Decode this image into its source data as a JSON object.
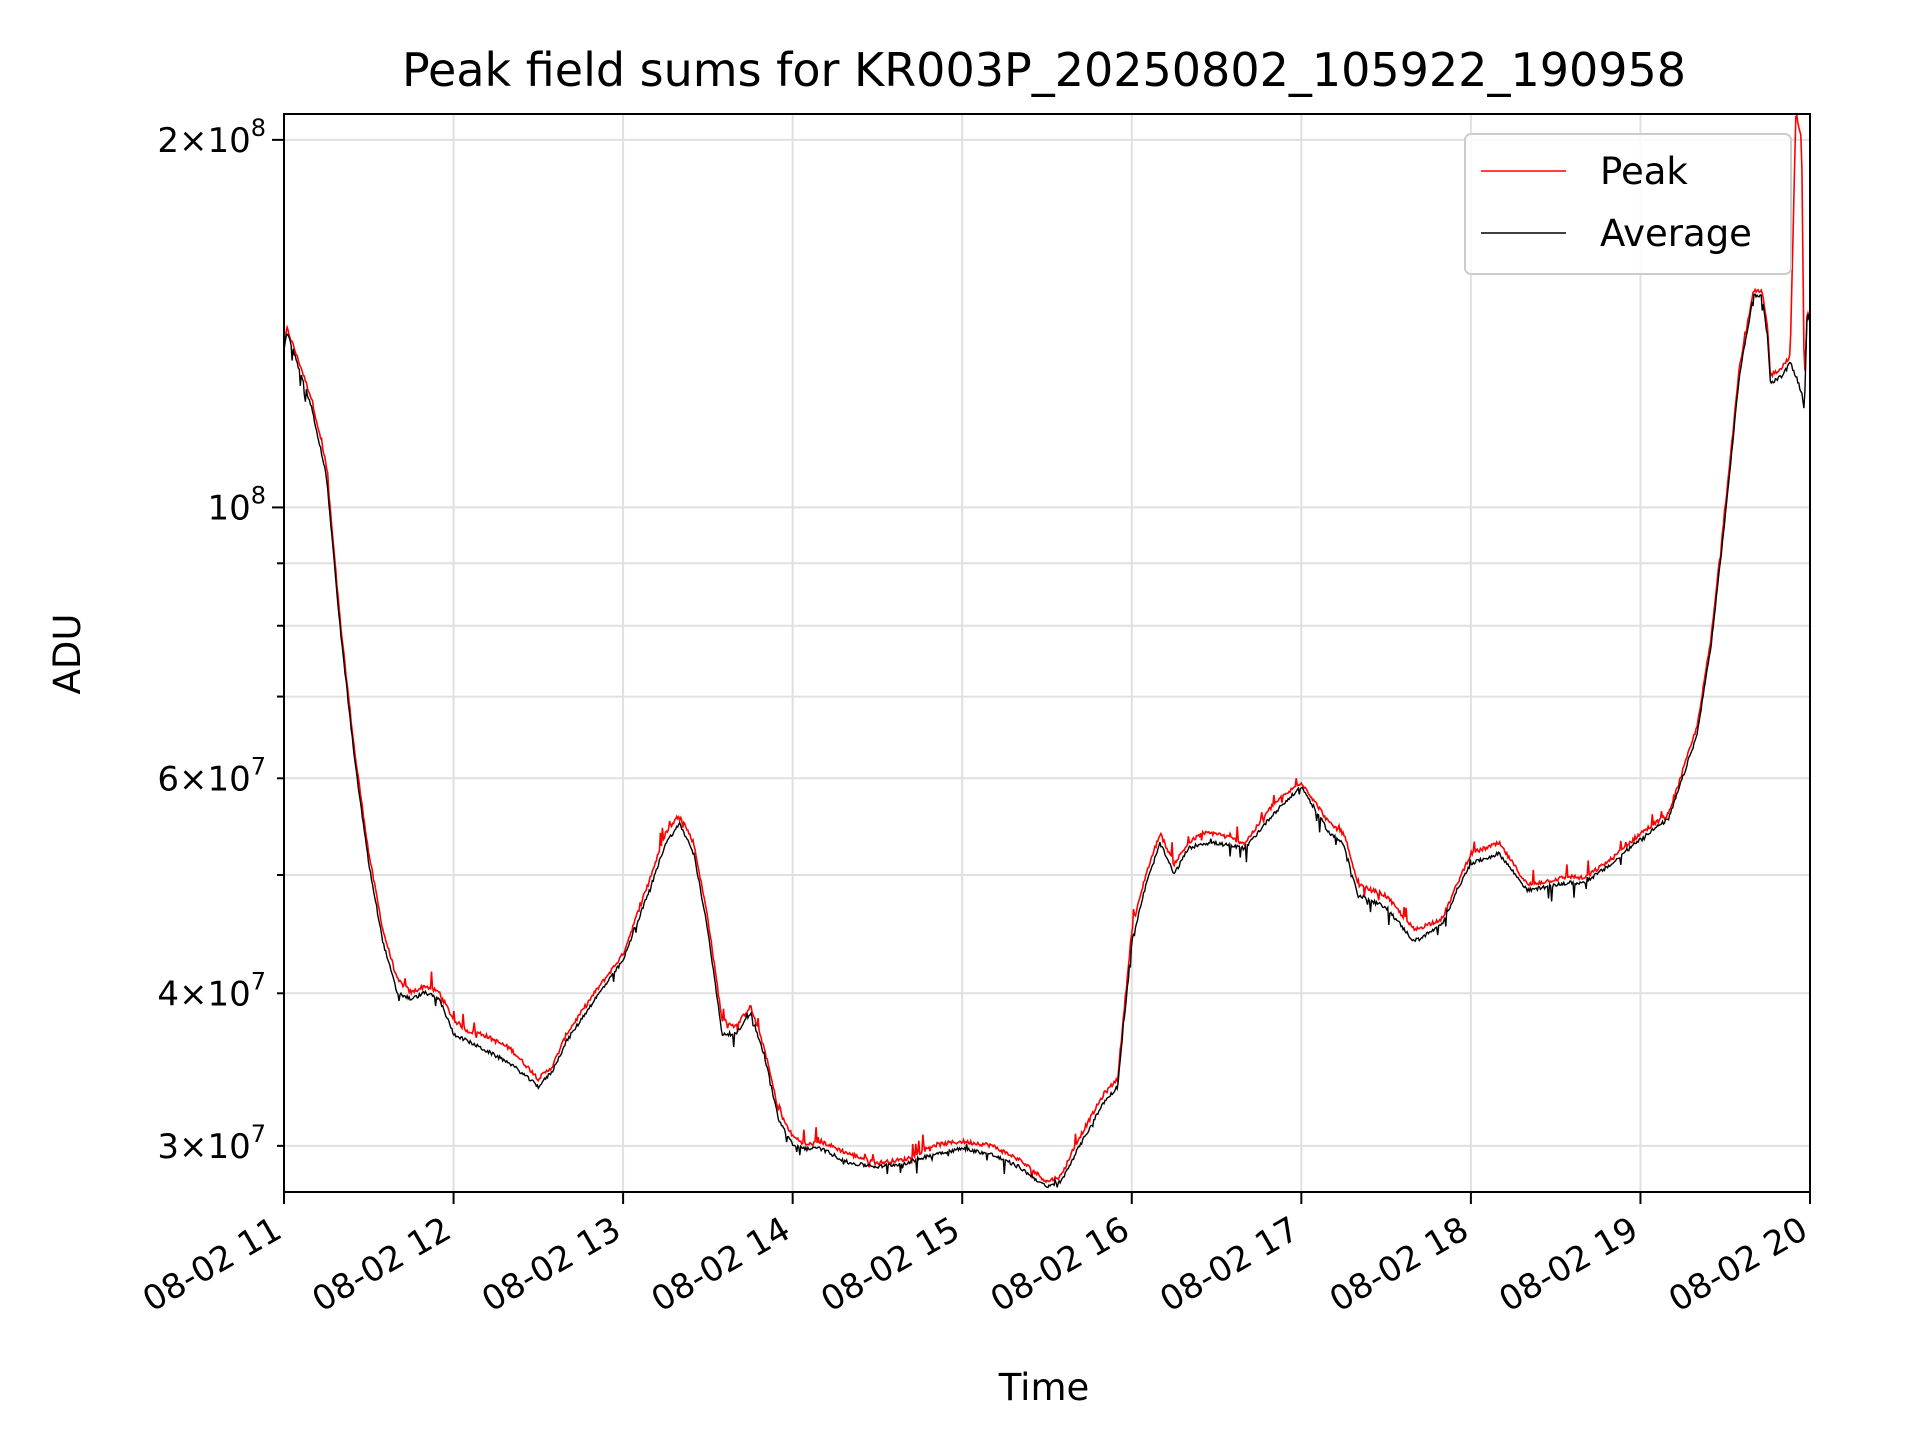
{
  "chart_data": {
    "type": "line",
    "title": "Peak field sums for KR003P_20250802_105922_190958",
    "xlabel": "Time",
    "ylabel": "ADU",
    "xlim": [
      "2025-08-02T11:00",
      "2025-08-02T20:00"
    ],
    "ylim": [
      27500000,
      210000000
    ],
    "yscale": "log",
    "grid": true,
    "legend": {
      "position": "top-right",
      "entries": [
        "Peak",
        "Average"
      ]
    },
    "x_ticks": [
      "08-02 11",
      "08-02 12",
      "08-02 13",
      "08-02 14",
      "08-02 15",
      "08-02 16",
      "08-02 17",
      "08-02 18",
      "08-02 19",
      "08-02 20"
    ],
    "y_ticks_major": [
      {
        "value": 100000000,
        "mantissa": "",
        "base": "10",
        "exp": "8"
      },
      {
        "value": 200000000,
        "mantissa": "2",
        "base": "10",
        "exp": "8"
      }
    ],
    "y_ticks_minor": [
      {
        "value": 30000000,
        "mantissa": "3",
        "base": "10",
        "exp": "7"
      },
      {
        "value": 40000000,
        "mantissa": "4",
        "base": "10",
        "exp": "7"
      },
      {
        "value": 60000000,
        "mantissa": "6",
        "base": "10",
        "exp": "7"
      }
    ],
    "y_minor_unlabeled": [
      50000000,
      70000000,
      80000000,
      90000000
    ],
    "series": [
      {
        "name": "Peak",
        "color": "#ff0000",
        "x": [
          "11:00",
          "11:01",
          "11:03",
          "11:06",
          "11:10",
          "11:15",
          "11:20",
          "11:25",
          "11:30",
          "11:35",
          "11:40",
          "11:45",
          "11:50",
          "11:55",
          "12:00",
          "12:05",
          "12:10",
          "12:20",
          "12:30",
          "12:35",
          "12:40",
          "12:50",
          "13:00",
          "13:10",
          "13:15",
          "13:20",
          "13:25",
          "13:30",
          "13:35",
          "13:40",
          "13:45",
          "13:50",
          "13:55",
          "14:00",
          "14:05",
          "14:10",
          "14:20",
          "14:30",
          "14:40",
          "14:50",
          "15:00",
          "15:10",
          "15:20",
          "15:30",
          "15:35",
          "15:40",
          "15:50",
          "15:55",
          "16:00",
          "16:05",
          "16:10",
          "16:15",
          "16:20",
          "16:25",
          "16:30",
          "16:40",
          "16:50",
          "17:00",
          "17:10",
          "17:15",
          "17:20",
          "17:30",
          "17:40",
          "17:50",
          "17:55",
          "18:00",
          "18:10",
          "18:20",
          "18:30",
          "18:35",
          "18:40",
          "18:50",
          "19:00",
          "19:10",
          "19:20",
          "19:25",
          "19:30",
          "19:35",
          "19:40",
          "19:43",
          "19:45",
          "19:46",
          "19:50",
          "19:53",
          "19:55",
          "19:57",
          "19:58",
          "19:59",
          "20:00"
        ],
        "y": [
          135000000,
          140000000,
          136000000,
          130000000,
          122000000,
          108000000,
          80000000,
          63000000,
          52000000,
          45000000,
          41000000,
          40000000,
          40500000,
          40000000,
          38000000,
          37200000,
          37000000,
          36000000,
          34000000,
          34800000,
          37000000,
          40000000,
          43000000,
          50000000,
          54000000,
          56000000,
          53000000,
          46000000,
          38000000,
          37500000,
          39000000,
          36000000,
          32000000,
          30500000,
          30000000,
          30200000,
          29500000,
          29000000,
          29200000,
          30000000,
          30200000,
          30000000,
          29200000,
          28000000,
          28300000,
          30000000,
          33000000,
          34000000,
          45000000,
          50000000,
          54000000,
          51000000,
          53000000,
          54000000,
          54000000,
          53000000,
          57000000,
          59500000,
          55000000,
          54000000,
          49000000,
          48000000,
          45000000,
          46000000,
          49000000,
          52000000,
          53000000,
          49000000,
          49500000,
          49800000,
          49600000,
          51500000,
          54000000,
          56000000,
          66000000,
          78000000,
          100000000,
          130000000,
          150000000,
          150000000,
          140000000,
          128000000,
          130000000,
          133000000,
          210000000,
          200000000,
          125000000,
          145000000,
          143000000
        ]
      },
      {
        "name": "Average",
        "color": "#000000",
        "x": [
          "11:00",
          "11:01",
          "11:03",
          "11:06",
          "11:10",
          "11:15",
          "11:20",
          "11:25",
          "11:30",
          "11:35",
          "11:40",
          "11:45",
          "11:50",
          "11:55",
          "12:00",
          "12:05",
          "12:10",
          "12:20",
          "12:30",
          "12:35",
          "12:40",
          "12:50",
          "13:00",
          "13:10",
          "13:15",
          "13:20",
          "13:25",
          "13:30",
          "13:35",
          "13:40",
          "13:45",
          "13:50",
          "13:55",
          "14:00",
          "14:05",
          "14:10",
          "14:20",
          "14:30",
          "14:40",
          "14:50",
          "15:00",
          "15:10",
          "15:20",
          "15:30",
          "15:35",
          "15:40",
          "15:50",
          "15:55",
          "16:00",
          "16:05",
          "16:10",
          "16:15",
          "16:20",
          "16:25",
          "16:30",
          "16:40",
          "16:50",
          "17:00",
          "17:10",
          "17:15",
          "17:20",
          "17:30",
          "17:40",
          "17:50",
          "17:55",
          "18:00",
          "18:10",
          "18:20",
          "18:30",
          "18:35",
          "18:40",
          "18:50",
          "19:00",
          "19:10",
          "19:20",
          "19:25",
          "19:30",
          "19:35",
          "19:40",
          "19:43",
          "19:45",
          "19:46",
          "19:50",
          "19:53",
          "19:55",
          "19:57",
          "19:58",
          "19:59",
          "20:00"
        ],
        "y": [
          134000000,
          139000000,
          135000000,
          128000000,
          120000000,
          106000000,
          79000000,
          62000000,
          51000000,
          44000000,
          40000000,
          39500000,
          40000000,
          39500000,
          37000000,
          36500000,
          36000000,
          35000000,
          33500000,
          34500000,
          36500000,
          39500000,
          42500000,
          49000000,
          53000000,
          55000000,
          52000000,
          45000000,
          37000000,
          37000000,
          38500000,
          35500000,
          31500000,
          30000000,
          29800000,
          29800000,
          29000000,
          28800000,
          29000000,
          29500000,
          29800000,
          29500000,
          28800000,
          27700000,
          28000000,
          29500000,
          32500000,
          33500000,
          44000000,
          49000000,
          53000000,
          50000000,
          52500000,
          53000000,
          53000000,
          52500000,
          56000000,
          59000000,
          54000000,
          53000000,
          48000000,
          47000000,
          44000000,
          45500000,
          48500000,
          51000000,
          52000000,
          48500000,
          49000000,
          49200000,
          49200000,
          51000000,
          53500000,
          55500000,
          65000000,
          77000000,
          98000000,
          128000000,
          149000000,
          149000000,
          138000000,
          126000000,
          128000000,
          131000000,
          128000000,
          124000000,
          120000000,
          144000000,
          142000000
        ]
      }
    ]
  }
}
